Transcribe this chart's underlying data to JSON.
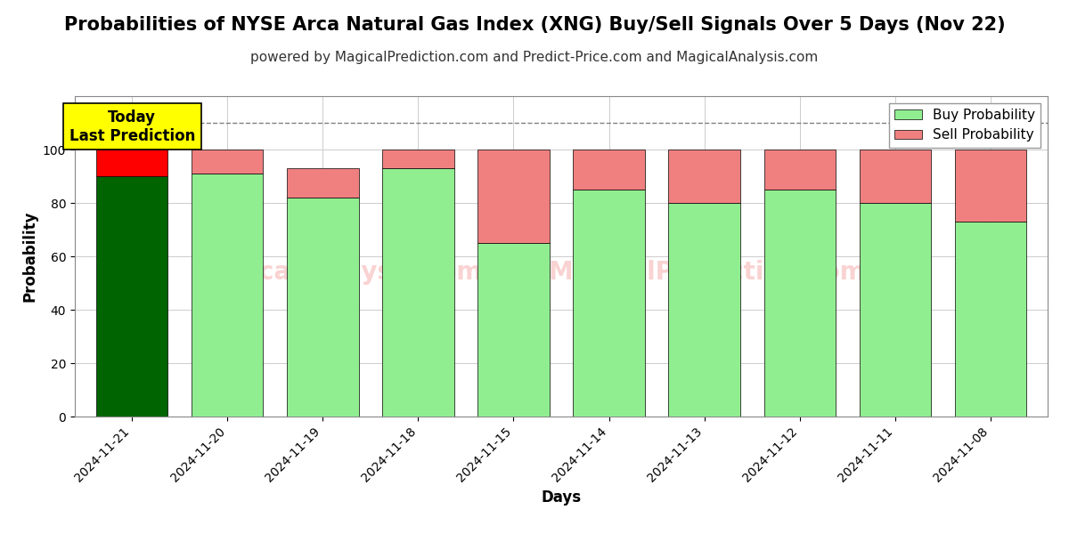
{
  "title": "Probabilities of NYSE Arca Natural Gas Index (XNG) Buy/Sell Signals Over 5 Days (Nov 22)",
  "subtitle": "powered by MagicalPrediction.com and Predict-Price.com and MagicalAnalysis.com",
  "xlabel": "Days",
  "ylabel": "Probability",
  "dates": [
    "2024-11-21",
    "2024-11-20",
    "2024-11-19",
    "2024-11-18",
    "2024-11-15",
    "2024-11-14",
    "2024-11-13",
    "2024-11-12",
    "2024-11-11",
    "2024-11-08"
  ],
  "buy_values": [
    90,
    91,
    82,
    93,
    65,
    85,
    80,
    85,
    80,
    73
  ],
  "sell_values": [
    10,
    9,
    11,
    7,
    35,
    15,
    20,
    15,
    20,
    27
  ],
  "today_buy_color": "#006400",
  "today_sell_color": "#FF0000",
  "buy_color": "#90EE90",
  "sell_color": "#F08080",
  "bar_edgecolor": "#000000",
  "ylim": [
    0,
    120
  ],
  "yticks": [
    0,
    20,
    40,
    60,
    80,
    100
  ],
  "dashed_line_y": 110,
  "dashed_line_color": "#808080",
  "annotation_text": "Today\nLast Prediction",
  "annotation_bg_color": "#FFFF00",
  "annotation_fontsize": 12,
  "title_fontsize": 15,
  "subtitle_fontsize": 11,
  "axis_label_fontsize": 12,
  "tick_fontsize": 10,
  "legend_fontsize": 11,
  "background_color": "#FFFFFF",
  "grid_color": "#CCCCCC",
  "watermark_color": "#F08080",
  "watermark_alpha": 0.35,
  "bar_width": 0.75
}
